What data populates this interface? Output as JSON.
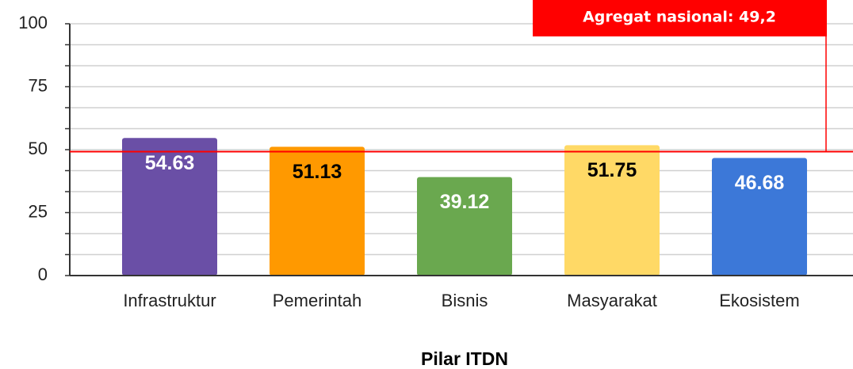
{
  "chart_data": {
    "type": "bar",
    "x_label": "Pilar ITDN",
    "categories": [
      "Infrastruktur",
      "Pemerintah",
      "Bisnis",
      "Masyarakat",
      "Ekosistem"
    ],
    "values": [
      54.63,
      51.13,
      39.12,
      51.75,
      46.68
    ],
    "colors": [
      "#6a4fa6",
      "#ff9900",
      "#6aa84f",
      "#ffd966",
      "#3c78d8"
    ],
    "label_colors": [
      "#ffffff",
      "#000000",
      "#ffffff",
      "#000000",
      "#ffffff"
    ],
    "ylim": [
      0,
      100
    ],
    "yticks": [
      0,
      25,
      50,
      75,
      100
    ],
    "minor_yticks": [
      8.33,
      16.67,
      33.33,
      41.67,
      58.33,
      66.67,
      83.33,
      91.67
    ],
    "grid": true,
    "reference_line": {
      "value": 49.2,
      "label": "Agregat nasional: 49,2",
      "color": "#ff0000"
    }
  }
}
